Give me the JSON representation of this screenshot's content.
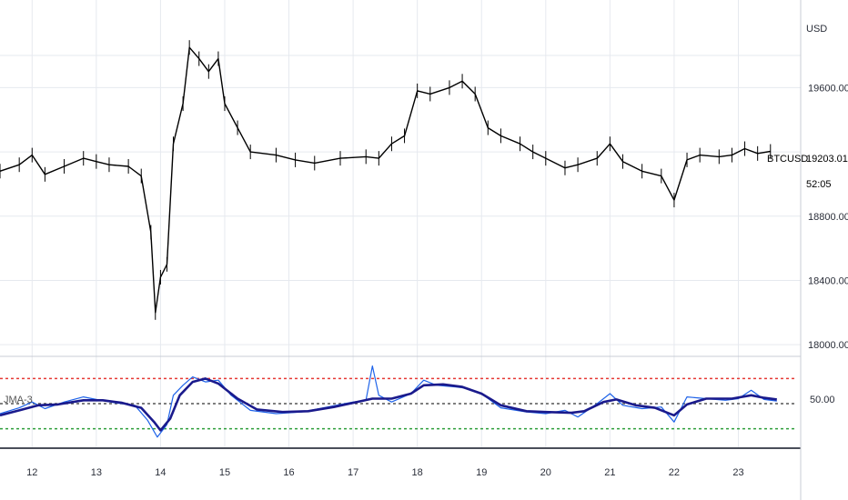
{
  "chart_data": [
    {
      "type": "candlestick",
      "symbol": "BTCUSD",
      "currency_label": "USD",
      "last_price": "19203.01",
      "countdown": "52:05",
      "y_ticks": [
        "19600.00",
        "18800.00",
        "18400.00",
        "18000.00"
      ],
      "y_tick_values": [
        19600,
        18800,
        18400,
        18000
      ],
      "ylim": [
        17950,
        20100
      ],
      "x_ticks": [
        "12",
        "13",
        "14",
        "15",
        "16",
        "17",
        "18",
        "19",
        "20",
        "21",
        "22",
        "23"
      ],
      "xlim": [
        11.5,
        23.9
      ],
      "grid": true,
      "colors": {
        "up": "#000000",
        "down": "#000000",
        "price_line": "#000000"
      },
      "price_path": [
        [
          11.5,
          19080
        ],
        [
          11.8,
          19120
        ],
        [
          12.0,
          19180
        ],
        [
          12.2,
          19060
        ],
        [
          12.5,
          19110
        ],
        [
          12.8,
          19160
        ],
        [
          13.0,
          19140
        ],
        [
          13.2,
          19120
        ],
        [
          13.5,
          19110
        ],
        [
          13.7,
          19050
        ],
        [
          13.85,
          18700
        ],
        [
          13.92,
          18200
        ],
        [
          14.0,
          18420
        ],
        [
          14.1,
          18500
        ],
        [
          14.2,
          19250
        ],
        [
          14.35,
          19500
        ],
        [
          14.45,
          19850
        ],
        [
          14.6,
          19780
        ],
        [
          14.75,
          19700
        ],
        [
          14.9,
          19780
        ],
        [
          15.0,
          19500
        ],
        [
          15.2,
          19350
        ],
        [
          15.4,
          19200
        ],
        [
          15.8,
          19180
        ],
        [
          16.1,
          19150
        ],
        [
          16.4,
          19130
        ],
        [
          16.8,
          19160
        ],
        [
          17.2,
          19170
        ],
        [
          17.4,
          19160
        ],
        [
          17.6,
          19250
        ],
        [
          17.8,
          19300
        ],
        [
          18.0,
          19580
        ],
        [
          18.2,
          19560
        ],
        [
          18.5,
          19600
        ],
        [
          18.7,
          19640
        ],
        [
          18.9,
          19560
        ],
        [
          19.1,
          19350
        ],
        [
          19.3,
          19300
        ],
        [
          19.6,
          19250
        ],
        [
          19.8,
          19200
        ],
        [
          20.0,
          19160
        ],
        [
          20.3,
          19100
        ],
        [
          20.5,
          19120
        ],
        [
          20.8,
          19160
        ],
        [
          21.0,
          19250
        ],
        [
          21.2,
          19140
        ],
        [
          21.5,
          19080
        ],
        [
          21.8,
          19050
        ],
        [
          22.0,
          18900
        ],
        [
          22.2,
          19150
        ],
        [
          22.4,
          19180
        ],
        [
          22.7,
          19170
        ],
        [
          22.9,
          19180
        ],
        [
          23.1,
          19220
        ],
        [
          23.3,
          19190
        ],
        [
          23.5,
          19203
        ]
      ]
    },
    {
      "type": "line",
      "indicator_label": "JMA-3",
      "y_tick_label": "50.00",
      "ylim": [
        0,
        100
      ],
      "levels": [
        {
          "value": 80,
          "color": "#e53935",
          "style": "dotted"
        },
        {
          "value": 50,
          "color": "#555555",
          "style": "dotted"
        },
        {
          "value": 20,
          "color": "#2e9e3a",
          "style": "dotted"
        }
      ],
      "series": [
        {
          "color": "#1e63e9",
          "values": [
            [
              11.5,
              38
            ],
            [
              11.8,
              45
            ],
            [
              12.0,
              52
            ],
            [
              12.2,
              44
            ],
            [
              12.5,
              52
            ],
            [
              12.8,
              58
            ],
            [
              13.0,
              55
            ],
            [
              13.3,
              51
            ],
            [
              13.6,
              48
            ],
            [
              13.8,
              30
            ],
            [
              13.95,
              10
            ],
            [
              14.1,
              25
            ],
            [
              14.2,
              60
            ],
            [
              14.35,
              72
            ],
            [
              14.5,
              82
            ],
            [
              14.7,
              76
            ],
            [
              14.9,
              78
            ],
            [
              15.1,
              60
            ],
            [
              15.4,
              42
            ],
            [
              15.8,
              38
            ],
            [
              16.2,
              40
            ],
            [
              16.6,
              46
            ],
            [
              17.0,
              52
            ],
            [
              17.2,
              54
            ],
            [
              17.3,
              95
            ],
            [
              17.4,
              60
            ],
            [
              17.6,
              52
            ],
            [
              17.9,
              62
            ],
            [
              18.1,
              78
            ],
            [
              18.3,
              72
            ],
            [
              18.6,
              70
            ],
            [
              18.8,
              68
            ],
            [
              19.0,
              62
            ],
            [
              19.3,
              45
            ],
            [
              19.7,
              40
            ],
            [
              20.0,
              38
            ],
            [
              20.3,
              42
            ],
            [
              20.5,
              34
            ],
            [
              20.8,
              50
            ],
            [
              21.0,
              62
            ],
            [
              21.2,
              48
            ],
            [
              21.5,
              44
            ],
            [
              21.8,
              46
            ],
            [
              22.0,
              28
            ],
            [
              22.2,
              58
            ],
            [
              22.5,
              56
            ],
            [
              22.8,
              54
            ],
            [
              23.0,
              56
            ],
            [
              23.2,
              66
            ],
            [
              23.4,
              55
            ],
            [
              23.6,
              53
            ]
          ]
        },
        {
          "color": "#1a1a8c",
          "values": [
            [
              11.5,
              36
            ],
            [
              11.8,
              42
            ],
            [
              12.1,
              48
            ],
            [
              12.4,
              49
            ],
            [
              12.8,
              54
            ],
            [
              13.1,
              54
            ],
            [
              13.4,
              51
            ],
            [
              13.7,
              45
            ],
            [
              13.9,
              28
            ],
            [
              14.0,
              18
            ],
            [
              14.15,
              32
            ],
            [
              14.3,
              60
            ],
            [
              14.5,
              76
            ],
            [
              14.7,
              80
            ],
            [
              14.9,
              74
            ],
            [
              15.2,
              56
            ],
            [
              15.5,
              43
            ],
            [
              15.9,
              40
            ],
            [
              16.3,
              41
            ],
            [
              16.7,
              46
            ],
            [
              17.0,
              51
            ],
            [
              17.3,
              56
            ],
            [
              17.6,
              56
            ],
            [
              17.9,
              62
            ],
            [
              18.1,
              72
            ],
            [
              18.4,
              73
            ],
            [
              18.7,
              70
            ],
            [
              19.0,
              62
            ],
            [
              19.3,
              48
            ],
            [
              19.7,
              41
            ],
            [
              20.0,
              40
            ],
            [
              20.4,
              39
            ],
            [
              20.6,
              41
            ],
            [
              20.9,
              52
            ],
            [
              21.1,
              55
            ],
            [
              21.4,
              48
            ],
            [
              21.7,
              45
            ],
            [
              22.0,
              36
            ],
            [
              22.2,
              49
            ],
            [
              22.5,
              56
            ],
            [
              22.9,
              56
            ],
            [
              23.2,
              60
            ],
            [
              23.4,
              57
            ],
            [
              23.6,
              55
            ]
          ]
        }
      ]
    }
  ]
}
